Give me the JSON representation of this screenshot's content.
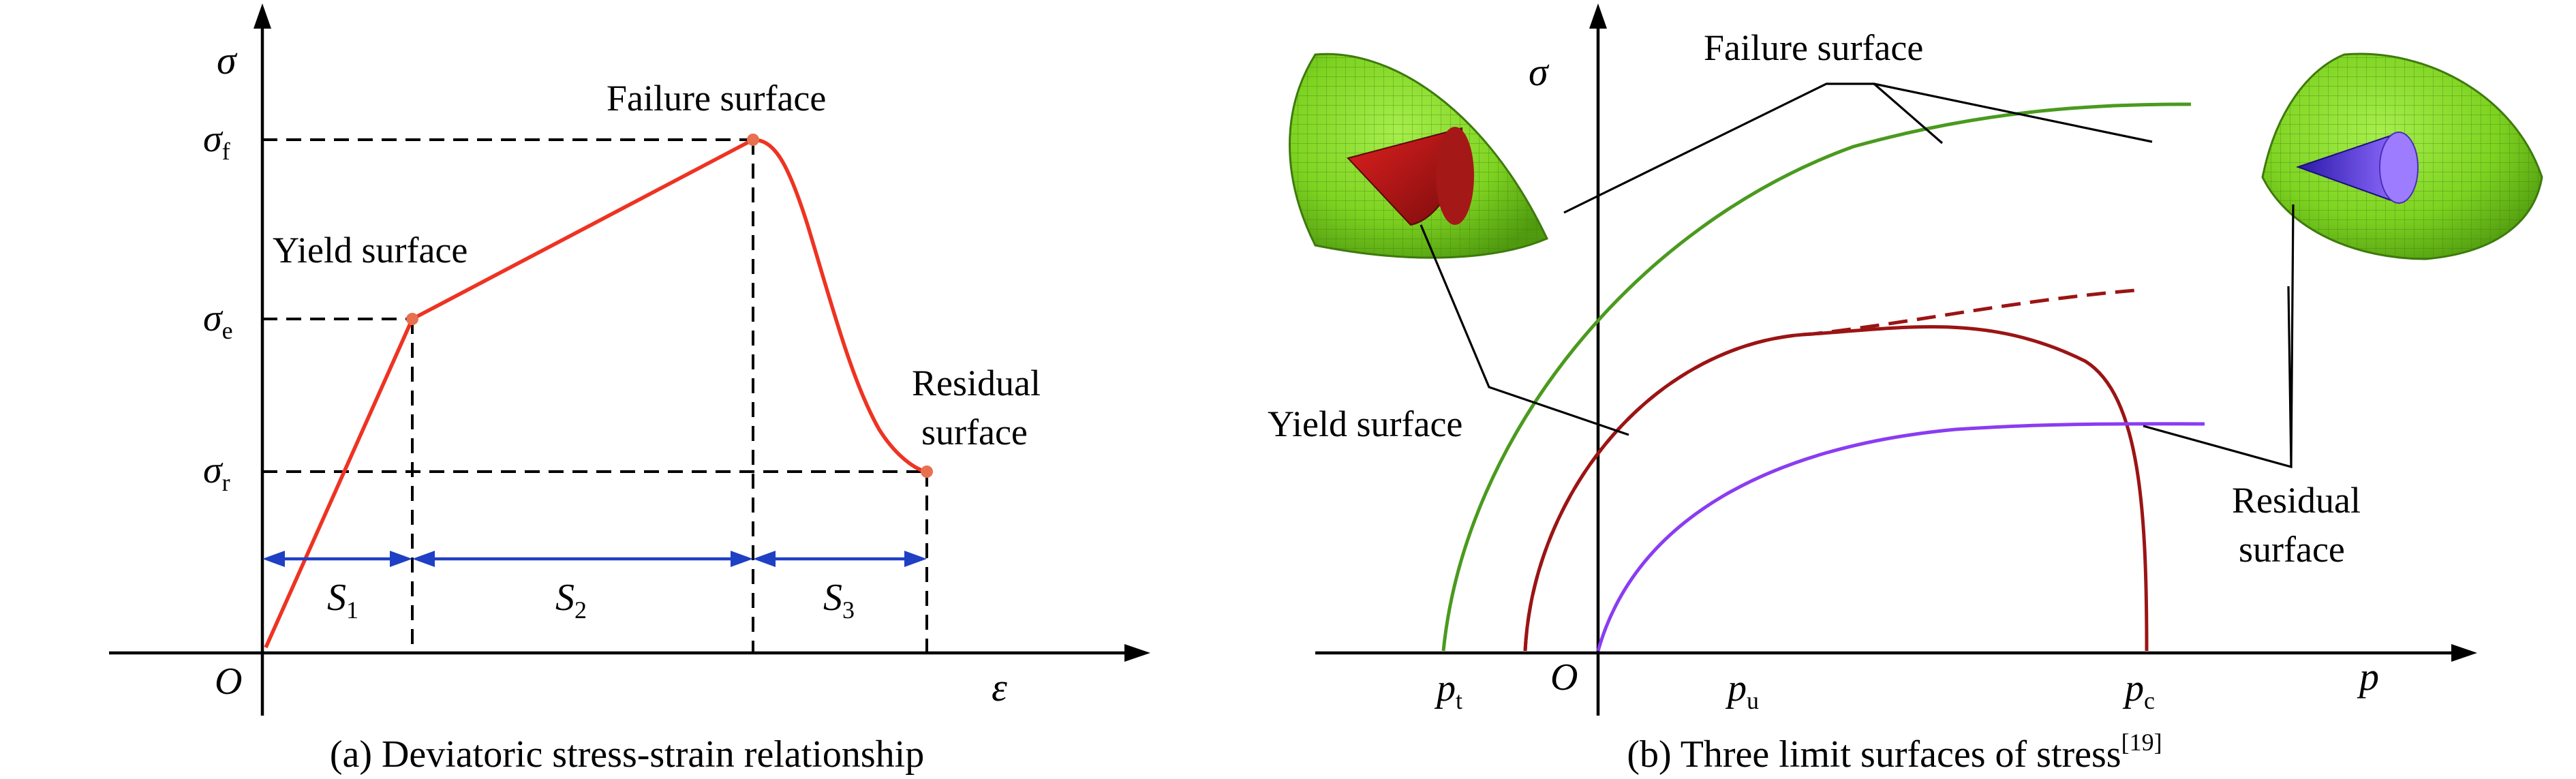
{
  "panel_a": {
    "caption": "(a) Deviatoric stress-strain relationship",
    "y_axis_symbol": "σ",
    "x_axis_symbol": "ε",
    "origin_label": "O",
    "sigma_f": {
      "base": "σ",
      "sub": "f"
    },
    "sigma_e": {
      "base": "σ",
      "sub": "e"
    },
    "sigma_r": {
      "base": "σ",
      "sub": "r"
    },
    "yield_label": "Yield surface",
    "failure_label": "Failure surface",
    "residual_label_1": "Residual",
    "residual_label_2": "surface",
    "s1": {
      "base": "S",
      "sub": "1"
    },
    "s2": {
      "base": "S",
      "sub": "2"
    },
    "s3": {
      "base": "S",
      "sub": "3"
    },
    "curve_color": "#ee3322",
    "interval_color": "#1f3fc4"
  },
  "panel_b": {
    "caption": "(b) Three limit surfaces of stress",
    "caption_ref": "[19]",
    "y_axis_symbol": "σ",
    "x_axis_symbol": "p",
    "origin_label": "O",
    "p_t": {
      "base": "p",
      "sub": "t"
    },
    "p_u": {
      "base": "p",
      "sub": "u"
    },
    "p_c": {
      "base": "p",
      "sub": "c"
    },
    "failure_label": "Failure surface",
    "yield_label": "Yield surface",
    "residual_label_1": "Residual",
    "residual_label_2": "surface",
    "failure_color": "#4a9a1e",
    "yield_color": "#9b1414",
    "residual_color": "#8a3cf2",
    "shell_color": "#7ed321"
  }
}
